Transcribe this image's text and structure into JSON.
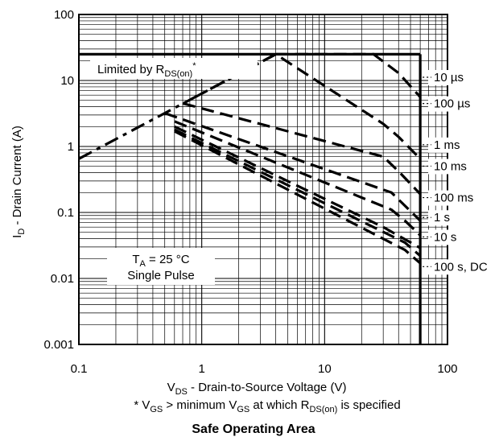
{
  "chart_data": {
    "type": "line",
    "title": "Safe Operating Area",
    "xlabel": "V_DS - Drain-to-Source Voltage (V)",
    "ylabel": "I_D - Drain Current (A)",
    "footnote": "* V_GS > minimum V_GS at which R_DS(on) is specified",
    "x_scale": "log",
    "y_scale": "log",
    "xlim": [
      0.1,
      100
    ],
    "ylim": [
      0.001,
      100
    ],
    "x_ticks": [
      "0.1",
      "1",
      "10",
      "100"
    ],
    "y_ticks": [
      "0.001",
      "0.01",
      "0.1",
      "1",
      "10",
      "100"
    ],
    "grid": true,
    "annotations": {
      "limit_text": "Limited by R",
      "limit_sub": "DS(on)",
      "limit_sup": "*",
      "cond_line1_prefix": "T",
      "cond_line1_sub": "A",
      "cond_line1_suffix": " = 25 °C",
      "cond_line2": "Single Pulse"
    },
    "limits": {
      "max_current_A": 25,
      "max_voltage_V": 60
    },
    "rdson_line": {
      "x": [
        0.1,
        4
      ],
      "y": [
        0.65,
        25
      ]
    },
    "series": [
      {
        "name": "10 µs",
        "x": [
          4,
          25,
          40,
          60
        ],
        "y": [
          25,
          25,
          13,
          5.6
        ],
        "label_y": 10
      },
      {
        "name": "100 µs",
        "x": [
          0.9,
          4,
          30,
          40,
          60
        ],
        "y": [
          5.7,
          25,
          2.2,
          1.4,
          0.65
        ],
        "label_y": 4
      },
      {
        "name": "1 ms",
        "x": [
          0.7,
          30,
          40,
          60
        ],
        "y": [
          4.5,
          0.7,
          0.42,
          0.19
        ],
        "label_y": 0.95
      },
      {
        "name": "10 ms",
        "x": [
          0.5,
          35,
          60
        ],
        "y": [
          3.2,
          0.2,
          0.075
        ],
        "label_y": 0.45
      },
      {
        "name": "100 ms",
        "x": [
          0.6,
          35,
          45,
          60
        ],
        "y": [
          2.4,
          0.11,
          0.075,
          0.045
        ],
        "label_y": 0.15
      },
      {
        "name": "1 s",
        "x": [
          0.6,
          30,
          60
        ],
        "y": [
          2.0,
          0.06,
          0.029
        ],
        "label_y": 0.075
      },
      {
        "name": "10 s",
        "x": [
          0.6,
          45,
          60
        ],
        "y": [
          1.8,
          0.035,
          0.022
        ],
        "label_y": 0.038
      },
      {
        "name": "100 s, DC",
        "x": [
          0.6,
          45,
          60
        ],
        "y": [
          1.7,
          0.027,
          0.017
        ],
        "label_y": 0.0135
      }
    ]
  }
}
